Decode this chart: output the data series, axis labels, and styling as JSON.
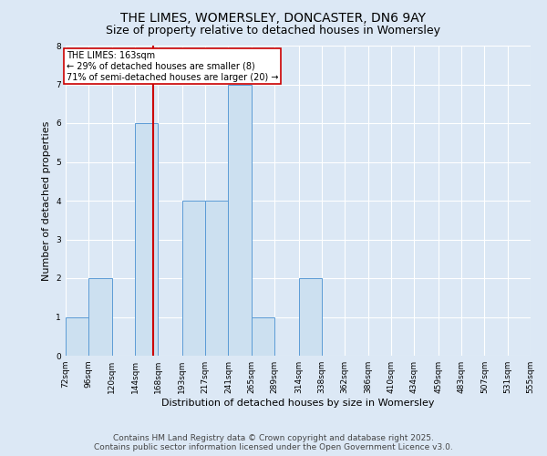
{
  "title": "THE LIMES, WOMERSLEY, DONCASTER, DN6 9AY",
  "subtitle": "Size of property relative to detached houses in Womersley",
  "xlabel": "Distribution of detached houses by size in Womersley",
  "ylabel": "Number of detached properties",
  "bin_edges": [
    72,
    96,
    120,
    144,
    168,
    193,
    217,
    241,
    265,
    289,
    314,
    338,
    362,
    386,
    410,
    434,
    459,
    483,
    507,
    531,
    555
  ],
  "bin_labels": [
    "72sqm",
    "96sqm",
    "120sqm",
    "144sqm",
    "168sqm",
    "193sqm",
    "217sqm",
    "241sqm",
    "265sqm",
    "289sqm",
    "314sqm",
    "338sqm",
    "362sqm",
    "386sqm",
    "410sqm",
    "434sqm",
    "459sqm",
    "483sqm",
    "507sqm",
    "531sqm",
    "555sqm"
  ],
  "bar_heights": [
    1,
    2,
    0,
    6,
    0,
    4,
    4,
    7,
    1,
    0,
    2,
    0,
    0,
    0,
    0,
    0,
    0,
    0,
    0,
    0
  ],
  "bar_color": "#cce0f0",
  "bar_edge_color": "#5b9bd5",
  "red_line_x": 163,
  "ylim": [
    0,
    8
  ],
  "yticks": [
    0,
    1,
    2,
    3,
    4,
    5,
    6,
    7,
    8
  ],
  "annotation_box_text": "THE LIMES: 163sqm\n← 29% of detached houses are smaller (8)\n71% of semi-detached houses are larger (20) →",
  "annotation_box_color": "#cc0000",
  "footer_line1": "Contains HM Land Registry data © Crown copyright and database right 2025.",
  "footer_line2": "Contains public sector information licensed under the Open Government Licence v3.0.",
  "background_color": "#dce8f5",
  "plot_bg_color": "#dce8f5",
  "grid_color": "#ffffff",
  "title_fontsize": 10,
  "subtitle_fontsize": 9,
  "axis_label_fontsize": 8,
  "tick_fontsize": 6.5,
  "footer_fontsize": 6.5
}
